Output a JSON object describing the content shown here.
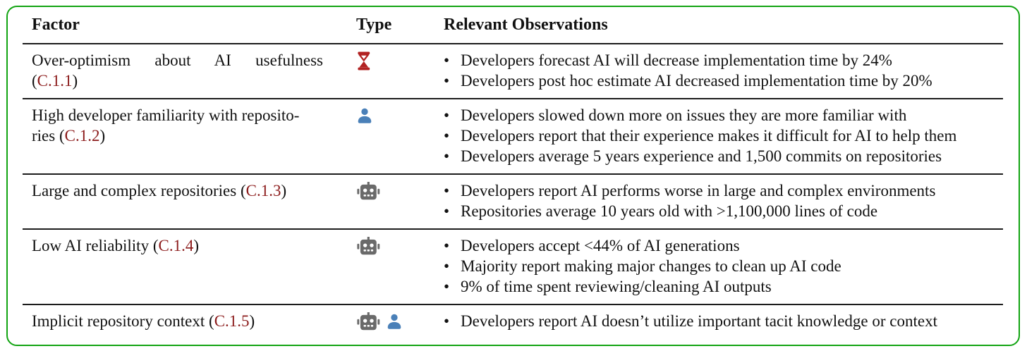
{
  "table": {
    "header": {
      "factor": "Factor",
      "type": "Type",
      "observations": "Relevant Observations"
    },
    "punctuation": {
      "open": "(",
      "close": ")"
    },
    "bullet": "•",
    "colors": {
      "frame_green": "#12a412",
      "rule_black": "#1c1c1c",
      "text_black": "#111111",
      "ref_red": "#8b1a1a",
      "hourglass_red": "#b22222",
      "person_blue": "#4a80b8",
      "robot_gray": "#6a6a6a"
    },
    "rows": [
      {
        "factor_lines": [
          {
            "text": "Over-optimism about AI usefulness",
            "justify": true
          },
          {
            "text": "",
            "ref": "C.1.1"
          }
        ],
        "icons": [
          "hourglass"
        ],
        "observations": [
          "Developers forecast AI will decrease implementation time by 24%",
          "Developers post hoc estimate AI decreased implementation time by 20%"
        ]
      },
      {
        "factor_lines": [
          {
            "text": "High developer familiarity with reposito-"
          },
          {
            "text": "ries ",
            "ref": "C.1.2"
          }
        ],
        "icons": [
          "person"
        ],
        "observations": [
          "Developers slowed down more on issues they are more familiar with",
          "Developers report that their experience makes it difficult for AI to help them",
          "Developers average 5 years experience and 1,500 commits on repositories"
        ]
      },
      {
        "factor_lines": [
          {
            "text": "Large and complex repositories ",
            "ref": "C.1.3"
          }
        ],
        "icons": [
          "robot"
        ],
        "observations": [
          "Developers report AI performs worse in large and complex environments",
          "Repositories average 10 years old with >1,100,000 lines of code"
        ]
      },
      {
        "factor_lines": [
          {
            "text": "Low AI reliability ",
            "ref": "C.1.4"
          }
        ],
        "icons": [
          "robot"
        ],
        "observations": [
          "Developers accept <44% of AI generations",
          "Majority report making major changes to clean up AI code",
          "9% of time spent reviewing/cleaning AI outputs"
        ]
      },
      {
        "factor_lines": [
          {
            "text": "Implicit repository context ",
            "ref": "C.1.5"
          }
        ],
        "icons": [
          "robot",
          "person"
        ],
        "observations": [
          "Developers report AI doesn’t utilize important tacit knowledge or context"
        ]
      }
    ]
  }
}
